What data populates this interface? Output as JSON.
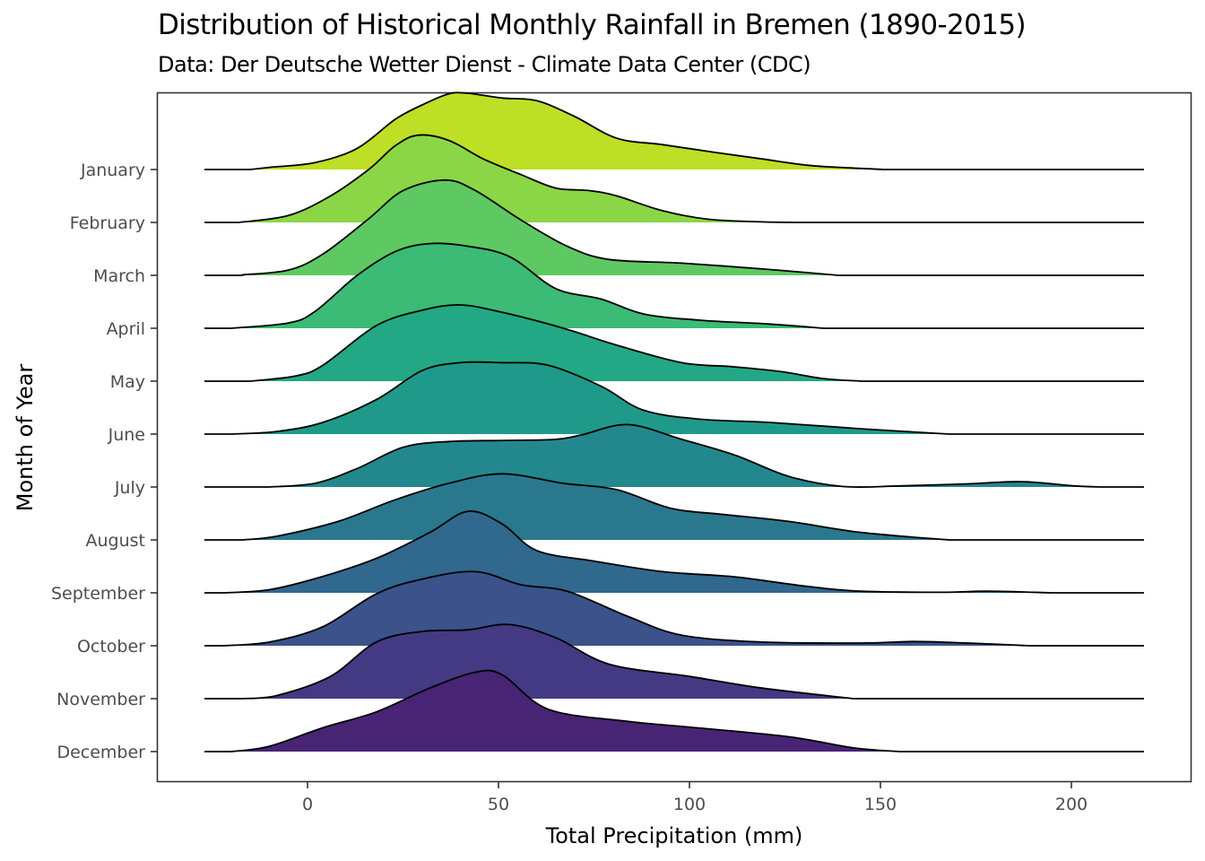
{
  "chart_data": {
    "type": "ridgeline",
    "title": "Distribution of Historical Monthly Rainfall in Bremen (1890-2015)",
    "subtitle": "Data: Der Deutsche Wetter Dienst - Climate Data Center (CDC)",
    "xlabel": "Total Precipitation (mm)",
    "ylabel": "Month of Year",
    "xlim": [
      -40,
      230
    ],
    "baseline_range": [
      -27,
      219
    ],
    "x_ticks": [
      0,
      50,
      100,
      150,
      200
    ],
    "x_tick_labels": [
      "0",
      "50",
      "100",
      "150",
      "200"
    ],
    "grid": false,
    "legend": "none",
    "series": [
      {
        "name": "January",
        "color": "#bddf26",
        "points": [
          [
            -15,
            0
          ],
          [
            -10,
            0.04
          ],
          [
            2,
            0.13
          ],
          [
            13,
            0.4
          ],
          [
            23,
            0.95
          ],
          [
            30,
            1.22
          ],
          [
            37,
            1.43
          ],
          [
            42,
            1.44
          ],
          [
            51,
            1.35
          ],
          [
            60,
            1.3
          ],
          [
            70,
            1.0
          ],
          [
            81,
            0.59
          ],
          [
            93,
            0.47
          ],
          [
            107,
            0.32
          ],
          [
            119,
            0.2
          ],
          [
            131,
            0.08
          ],
          [
            142,
            0.03
          ],
          [
            151,
            0
          ]
        ]
      },
      {
        "name": "February",
        "color": "#8bd646",
        "points": [
          [
            -18,
            0
          ],
          [
            -5,
            0.13
          ],
          [
            6,
            0.5
          ],
          [
            16,
            1.0
          ],
          [
            23,
            1.45
          ],
          [
            29,
            1.65
          ],
          [
            37,
            1.55
          ],
          [
            46,
            1.2
          ],
          [
            56,
            0.9
          ],
          [
            65,
            0.65
          ],
          [
            74,
            0.6
          ],
          [
            81,
            0.5
          ],
          [
            93,
            0.22
          ],
          [
            105,
            0.06
          ],
          [
            119,
            0.01
          ],
          [
            128,
            0
          ]
        ]
      },
      {
        "name": "March",
        "color": "#5ec962",
        "points": [
          [
            -17,
            0.01
          ],
          [
            -5,
            0.1
          ],
          [
            4,
            0.4
          ],
          [
            16,
            1.07
          ],
          [
            25,
            1.6
          ],
          [
            36,
            1.8
          ],
          [
            44,
            1.6
          ],
          [
            56,
            1.04
          ],
          [
            68,
            0.55
          ],
          [
            79,
            0.3
          ],
          [
            98,
            0.23
          ],
          [
            121,
            0.11
          ],
          [
            139,
            0
          ]
        ]
      },
      {
        "name": "April",
        "color": "#3bbb75",
        "points": [
          [
            -20,
            0
          ],
          [
            -5,
            0.1
          ],
          [
            2,
            0.32
          ],
          [
            13,
            1.0
          ],
          [
            23,
            1.45
          ],
          [
            32,
            1.6
          ],
          [
            42,
            1.55
          ],
          [
            53,
            1.35
          ],
          [
            65,
            0.75
          ],
          [
            77,
            0.55
          ],
          [
            88,
            0.27
          ],
          [
            103,
            0.15
          ],
          [
            121,
            0.08
          ],
          [
            135,
            0
          ]
        ]
      },
      {
        "name": "May",
        "color": "#22a884",
        "points": [
          [
            -15,
            0
          ],
          [
            -3,
            0.1
          ],
          [
            4,
            0.3
          ],
          [
            18,
            1.05
          ],
          [
            30,
            1.34
          ],
          [
            40,
            1.44
          ],
          [
            51,
            1.3
          ],
          [
            67,
            1.0
          ],
          [
            81,
            0.68
          ],
          [
            98,
            0.35
          ],
          [
            112,
            0.27
          ],
          [
            124,
            0.18
          ],
          [
            135,
            0.05
          ],
          [
            145,
            0
          ]
        ]
      },
      {
        "name": "June",
        "color": "#1f9a8a",
        "points": [
          [
            -20,
            0
          ],
          [
            -8,
            0.05
          ],
          [
            4,
            0.22
          ],
          [
            18,
            0.65
          ],
          [
            30,
            1.2
          ],
          [
            40,
            1.35
          ],
          [
            51,
            1.35
          ],
          [
            63,
            1.3
          ],
          [
            77,
            0.9
          ],
          [
            88,
            0.45
          ],
          [
            103,
            0.28
          ],
          [
            121,
            0.22
          ],
          [
            145,
            0.1
          ],
          [
            168,
            0
          ]
        ]
      },
      {
        "name": "July",
        "color": "#23888e",
        "points": [
          [
            -10,
            0
          ],
          [
            2,
            0.07
          ],
          [
            13,
            0.35
          ],
          [
            25,
            0.75
          ],
          [
            37,
            0.86
          ],
          [
            51,
            0.88
          ],
          [
            65,
            0.9
          ],
          [
            72,
            0.99
          ],
          [
            84,
            1.18
          ],
          [
            98,
            0.9
          ],
          [
            112,
            0.6
          ],
          [
            126,
            0.2
          ],
          [
            140,
            0.01
          ],
          [
            155,
            0.02
          ],
          [
            173,
            0.06
          ],
          [
            187,
            0.1
          ],
          [
            201,
            0.02
          ],
          [
            208,
            0
          ]
        ]
      },
      {
        "name": "August",
        "color": "#2a788e",
        "points": [
          [
            -17,
            0
          ],
          [
            -8,
            0.07
          ],
          [
            8,
            0.35
          ],
          [
            23,
            0.76
          ],
          [
            37,
            1.07
          ],
          [
            51,
            1.25
          ],
          [
            67,
            1.07
          ],
          [
            81,
            0.95
          ],
          [
            95,
            0.6
          ],
          [
            109,
            0.48
          ],
          [
            126,
            0.35
          ],
          [
            145,
            0.14
          ],
          [
            168,
            0
          ]
        ]
      },
      {
        "name": "September",
        "color": "#31688e",
        "points": [
          [
            -22,
            0
          ],
          [
            -10,
            0.06
          ],
          [
            4,
            0.31
          ],
          [
            18,
            0.65
          ],
          [
            32,
            1.14
          ],
          [
            42,
            1.54
          ],
          [
            51,
            1.3
          ],
          [
            60,
            0.8
          ],
          [
            75,
            0.6
          ],
          [
            93,
            0.4
          ],
          [
            112,
            0.3
          ],
          [
            131,
            0.12
          ],
          [
            145,
            0.03
          ],
          [
            166,
            0.01
          ],
          [
            178,
            0.03
          ],
          [
            195,
            0
          ]
        ]
      },
      {
        "name": "October",
        "color": "#3b528b",
        "points": [
          [
            -22,
            0
          ],
          [
            -10,
            0.07
          ],
          [
            4,
            0.36
          ],
          [
            18,
            0.98
          ],
          [
            30,
            1.26
          ],
          [
            44,
            1.4
          ],
          [
            56,
            1.15
          ],
          [
            68,
            1.03
          ],
          [
            84,
            0.55
          ],
          [
            98,
            0.2
          ],
          [
            119,
            0.07
          ],
          [
            145,
            0.05
          ],
          [
            159,
            0.08
          ],
          [
            173,
            0.05
          ],
          [
            189,
            0
          ]
        ]
      },
      {
        "name": "November",
        "color": "#443a83",
        "points": [
          [
            -17,
            0
          ],
          [
            -8,
            0.06
          ],
          [
            6,
            0.42
          ],
          [
            18,
            1.07
          ],
          [
            30,
            1.27
          ],
          [
            42,
            1.3
          ],
          [
            53,
            1.4
          ],
          [
            65,
            1.15
          ],
          [
            79,
            0.65
          ],
          [
            100,
            0.42
          ],
          [
            119,
            0.2
          ],
          [
            143,
            0
          ]
        ]
      },
      {
        "name": "December",
        "color": "#482475",
        "points": [
          [
            -20,
            0
          ],
          [
            -10,
            0.1
          ],
          [
            4,
            0.45
          ],
          [
            18,
            0.75
          ],
          [
            32,
            1.2
          ],
          [
            44,
            1.5
          ],
          [
            51,
            1.45
          ],
          [
            63,
            0.8
          ],
          [
            84,
            0.57
          ],
          [
            102,
            0.45
          ],
          [
            126,
            0.28
          ],
          [
            143,
            0.07
          ],
          [
            155,
            0
          ]
        ]
      }
    ]
  }
}
